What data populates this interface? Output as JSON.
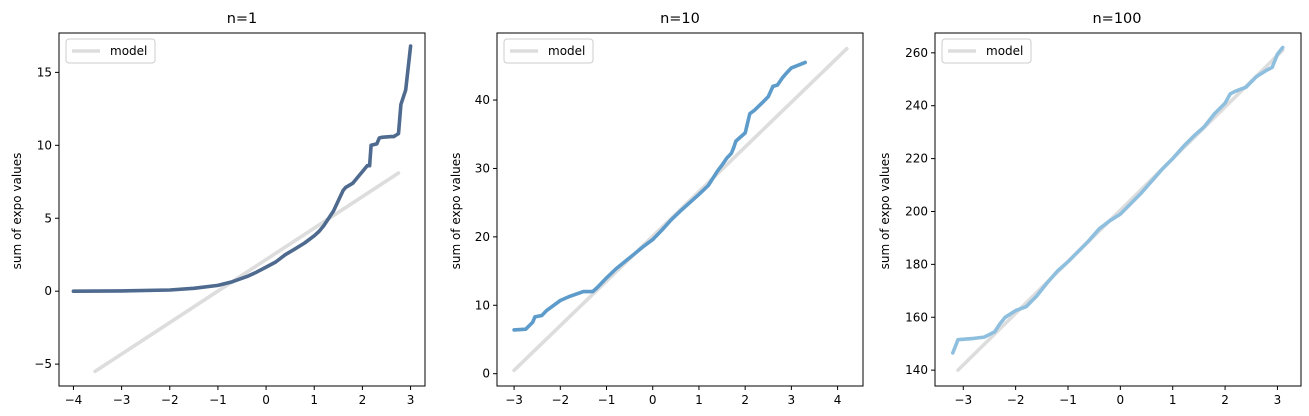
{
  "chart_data": [
    {
      "type": "line",
      "title": "n=1",
      "xlabel": "",
      "ylabel": "sum of expo values",
      "xlim": [
        -4.3,
        3.3
      ],
      "ylim": [
        -6.5,
        17.7
      ],
      "xticks": [
        -4,
        -3,
        -2,
        -1,
        0,
        1,
        2,
        3
      ],
      "yticks": [
        -5,
        0,
        5,
        10,
        15
      ],
      "grid": false,
      "legend": "top-left",
      "series": [
        {
          "name": "model",
          "color": "#dddddd",
          "x": [
            -3.55,
            2.75
          ],
          "y": [
            -5.5,
            8.1
          ]
        },
        {
          "name": "",
          "color": "#4f6a8f",
          "x": [
            -4.0,
            -3.0,
            -2.0,
            -1.5,
            -1.0,
            -0.7,
            -0.4,
            -0.2,
            0.0,
            0.2,
            0.4,
            0.6,
            0.8,
            1.0,
            1.1,
            1.2,
            1.3,
            1.4,
            1.5,
            1.6,
            1.65,
            1.8,
            1.9,
            2.0,
            2.1,
            2.15,
            2.18,
            2.3,
            2.35,
            2.4,
            2.6,
            2.65,
            2.75,
            2.8,
            2.9,
            3.0
          ],
          "y": [
            0.0,
            0.02,
            0.08,
            0.2,
            0.4,
            0.65,
            1.0,
            1.3,
            1.65,
            2.0,
            2.5,
            2.9,
            3.3,
            3.8,
            4.1,
            4.5,
            5.0,
            5.5,
            6.2,
            6.9,
            7.1,
            7.4,
            7.8,
            8.2,
            8.6,
            8.6,
            10.0,
            10.1,
            10.5,
            10.55,
            10.6,
            10.6,
            10.8,
            12.8,
            13.8,
            16.8
          ]
        }
      ]
    },
    {
      "type": "line",
      "title": "n=10",
      "xlabel": "",
      "ylabel": "sum of expo values",
      "xlim": [
        -3.37,
        4.55
      ],
      "ylim": [
        -1.8,
        49.8
      ],
      "xticks": [
        -3,
        -2,
        -1,
        0,
        1,
        2,
        3,
        4
      ],
      "yticks": [
        0,
        10,
        20,
        30,
        40
      ],
      "grid": false,
      "legend": "top-left",
      "series": [
        {
          "name": "model",
          "color": "#dddddd",
          "x": [
            -3.0,
            4.2
          ],
          "y": [
            0.5,
            47.5
          ]
        },
        {
          "name": "",
          "color": "#5d9bcb",
          "x": [
            -3.0,
            -2.75,
            -2.6,
            -2.55,
            -2.4,
            -2.3,
            -2.0,
            -1.8,
            -1.5,
            -1.3,
            -1.2,
            -1.0,
            -0.8,
            -0.6,
            -0.4,
            -0.2,
            0.0,
            0.2,
            0.4,
            0.6,
            0.8,
            1.0,
            1.2,
            1.4,
            1.5,
            1.6,
            1.7,
            1.75,
            1.8,
            1.9,
            2.0,
            2.1,
            2.2,
            2.4,
            2.5,
            2.6,
            2.7,
            2.8,
            2.9,
            3.0,
            3.3
          ],
          "y": [
            6.4,
            6.5,
            7.5,
            8.3,
            8.5,
            9.2,
            10.7,
            11.3,
            12.0,
            12.0,
            12.6,
            14.0,
            15.3,
            16.4,
            17.5,
            18.6,
            19.6,
            21.0,
            22.5,
            23.8,
            25.0,
            26.2,
            27.5,
            29.6,
            30.5,
            31.5,
            32.2,
            33.0,
            34.0,
            34.6,
            35.2,
            38.0,
            38.5,
            39.8,
            40.5,
            42.0,
            42.2,
            43.2,
            44.0,
            44.7,
            45.5
          ]
        }
      ]
    },
    {
      "type": "line",
      "title": "n=100",
      "xlabel": "",
      "ylabel": "sum of expo values",
      "xlim": [
        -3.54,
        3.45
      ],
      "ylim": [
        134.0,
        267.5
      ],
      "xticks": [
        -3,
        -2,
        -1,
        0,
        1,
        2,
        3
      ],
      "yticks": [
        140,
        160,
        180,
        200,
        220,
        240,
        260
      ],
      "grid": false,
      "legend": "top-left",
      "series": [
        {
          "name": "model",
          "color": "#dddddd",
          "x": [
            -3.1,
            3.1
          ],
          "y": [
            140.0,
            261.0
          ]
        },
        {
          "name": "",
          "color": "#8fbfde",
          "x": [
            -3.2,
            -3.1,
            -2.8,
            -2.6,
            -2.4,
            -2.3,
            -2.2,
            -2.0,
            -1.8,
            -1.6,
            -1.4,
            -1.2,
            -1.0,
            -0.8,
            -0.6,
            -0.4,
            -0.2,
            0.0,
            0.2,
            0.4,
            0.6,
            0.8,
            1.0,
            1.2,
            1.4,
            1.6,
            1.8,
            2.0,
            2.1,
            2.2,
            2.4,
            2.6,
            2.8,
            2.9,
            3.0,
            3.1
          ],
          "y": [
            146.5,
            151.5,
            152.0,
            152.5,
            154.5,
            157.5,
            160.0,
            162.5,
            164.0,
            168.0,
            173.0,
            177.5,
            181.0,
            185.0,
            189.0,
            193.5,
            196.5,
            199.0,
            203.0,
            207.0,
            211.5,
            216.0,
            220.0,
            224.5,
            228.5,
            232.0,
            237.0,
            241.0,
            244.5,
            245.5,
            247.0,
            251.0,
            253.5,
            254.5,
            259.5,
            262.0
          ]
        }
      ]
    }
  ]
}
